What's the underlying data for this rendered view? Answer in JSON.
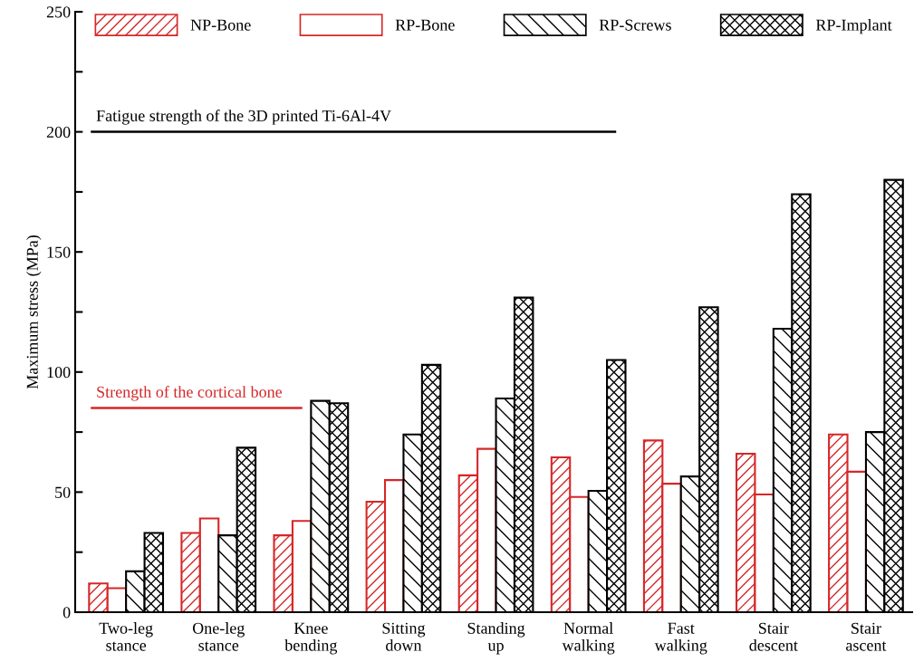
{
  "chart_data": {
    "type": "bar",
    "ylabel": "Maximum stress (MPa)",
    "categories": [
      "Two-leg\nstance",
      "One-leg\nstance",
      "Knee\nbending",
      "Sitting\ndown",
      "Standing\nup",
      "Normal\nwalking",
      "Fast\nwalking",
      "Stair\ndescent",
      "Stair\nascent"
    ],
    "series": [
      {
        "name": "NP-Bone",
        "color": "#d62728",
        "values": [
          12,
          33,
          32,
          46,
          57,
          64.5,
          71.5,
          66,
          74
        ]
      },
      {
        "name": "RP-Bone",
        "color": "#d62728",
        "values": [
          10,
          39,
          38,
          55,
          68,
          48,
          53.5,
          49,
          58.5
        ]
      },
      {
        "name": "RP-Screws",
        "color": "#000000",
        "values": [
          17,
          32,
          88,
          74,
          89,
          50.5,
          56.5,
          118,
          75
        ]
      },
      {
        "name": "RP-Implant",
        "color": "#000000",
        "values": [
          33,
          68.5,
          87,
          103,
          131,
          105,
          127,
          174,
          180
        ]
      }
    ],
    "ylim": [
      0,
      250
    ],
    "yticks": [
      0,
      {
        "value": 25,
        "label": null
      },
      50,
      {
        "value": 75,
        "label": null
      },
      100,
      {
        "value": 125,
        "label": null
      },
      150,
      {
        "value": 175,
        "label": null
      },
      200,
      {
        "value": 225,
        "label": null
      },
      250
    ],
    "ref_lines": [
      {
        "axis": "y",
        "value": 200,
        "label": "Fatigue strength of the 3D printed Ti-6Al-4V",
        "color": "#000000"
      },
      {
        "axis": "y",
        "value": 85,
        "label": "Strength of the cortical bone",
        "color": "#d62728"
      }
    ],
    "legend": "top",
    "grid": false
  }
}
